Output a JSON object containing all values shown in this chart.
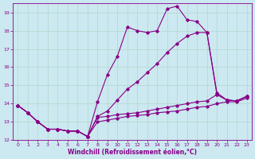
{
  "xlabel": "Windchill (Refroidissement éolien,°C)",
  "background_color": "#cce8f0",
  "grid_color": "#b0d8cc",
  "line_color": "#880088",
  "xlim": [
    -0.5,
    23.5
  ],
  "ylim": [
    12,
    19.5
  ],
  "yticks": [
    12,
    13,
    14,
    15,
    16,
    17,
    18,
    19
  ],
  "xticks": [
    0,
    1,
    2,
    3,
    4,
    5,
    6,
    7,
    8,
    9,
    10,
    11,
    12,
    13,
    14,
    15,
    16,
    17,
    18,
    19,
    20,
    21,
    22,
    23
  ],
  "series": [
    {
      "x": [
        0,
        1,
        2,
        3,
        4,
        5,
        6,
        7,
        8,
        9,
        10,
        11,
        12,
        13,
        14,
        15,
        16,
        17,
        18,
        19,
        20,
        21,
        22,
        23
      ],
      "y": [
        13.9,
        13.5,
        13.0,
        12.6,
        12.6,
        12.5,
        12.5,
        12.2,
        14.1,
        15.6,
        16.6,
        18.2,
        18.0,
        17.9,
        18.0,
        19.2,
        19.35,
        18.6,
        18.5,
        17.9,
        14.6,
        14.2,
        14.15,
        14.4
      ]
    },
    {
      "x": [
        0,
        1,
        2,
        3,
        4,
        5,
        6,
        7,
        8,
        9,
        10,
        11,
        12,
        13,
        14,
        15,
        16,
        17,
        18,
        19,
        20,
        21,
        22,
        23
      ],
      "y": [
        13.9,
        13.5,
        13.0,
        12.6,
        12.6,
        12.5,
        12.5,
        12.2,
        13.3,
        13.6,
        14.2,
        14.8,
        15.2,
        15.7,
        16.2,
        16.8,
        17.3,
        17.7,
        17.9,
        17.9,
        14.5,
        14.2,
        14.15,
        14.4
      ]
    },
    {
      "x": [
        0,
        1,
        2,
        3,
        4,
        5,
        6,
        7,
        8,
        9,
        10,
        11,
        12,
        13,
        14,
        15,
        16,
        17,
        18,
        19,
        20,
        21,
        22,
        23
      ],
      "y": [
        13.9,
        13.5,
        13.0,
        12.6,
        12.6,
        12.5,
        12.5,
        12.2,
        13.25,
        13.3,
        13.4,
        13.45,
        13.5,
        13.6,
        13.7,
        13.8,
        13.9,
        14.0,
        14.1,
        14.15,
        14.5,
        14.2,
        14.15,
        14.4
      ]
    },
    {
      "x": [
        0,
        1,
        2,
        3,
        4,
        5,
        6,
        7,
        8,
        9,
        10,
        11,
        12,
        13,
        14,
        15,
        16,
        17,
        18,
        19,
        20,
        21,
        22,
        23
      ],
      "y": [
        13.9,
        13.5,
        13.0,
        12.6,
        12.6,
        12.5,
        12.5,
        12.2,
        13.0,
        13.1,
        13.2,
        13.3,
        13.35,
        13.4,
        13.5,
        13.55,
        13.6,
        13.7,
        13.8,
        13.85,
        14.0,
        14.1,
        14.1,
        14.3
      ]
    }
  ]
}
